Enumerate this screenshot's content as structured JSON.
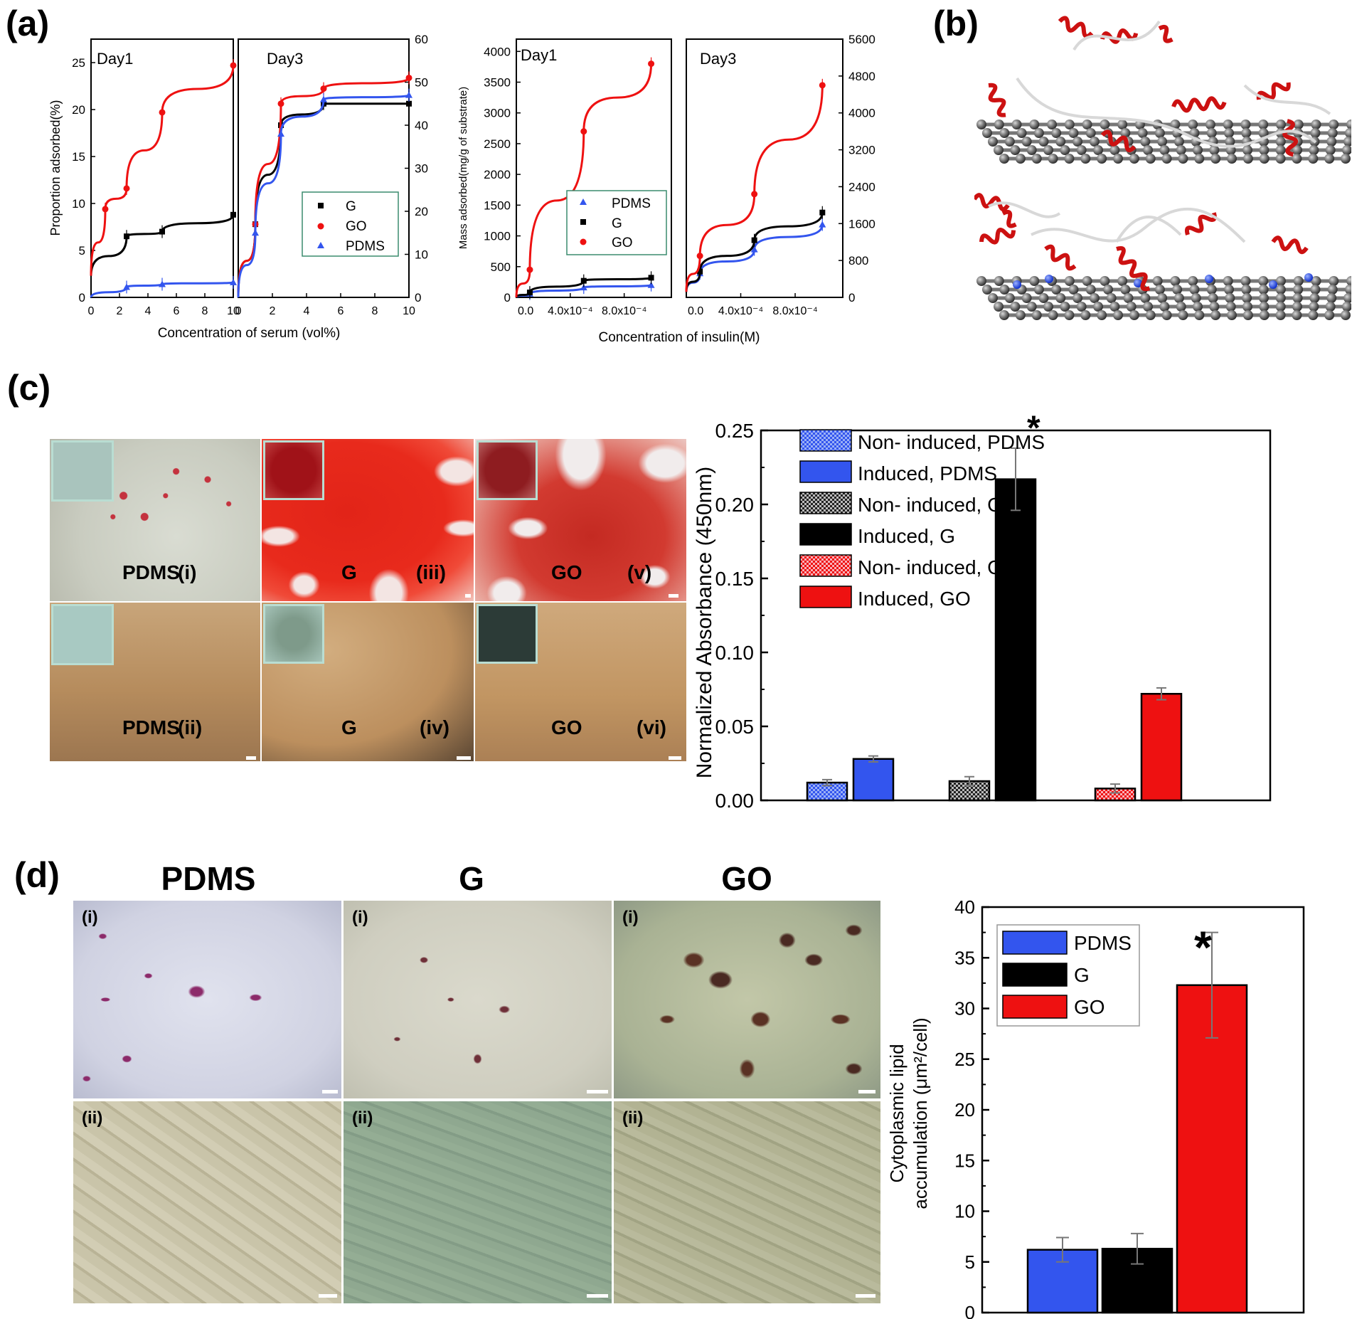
{
  "panels": {
    "a": "(a)",
    "b": "(b)",
    "c": "(c)",
    "d": "(d)"
  },
  "colors": {
    "pdms": "#3355ee",
    "g": "#000000",
    "go": "#ee1111"
  },
  "panel_a": {
    "serum": {
      "xlabel": "Concentration of serum (vol%)",
      "ylabel": "Proportion adsorbed(%)",
      "day1_title": "Day1",
      "day3_title": "Day3",
      "day1_yticks": [
        "0",
        "5",
        "10",
        "15",
        "20",
        "25"
      ],
      "day3_yticks": [
        "0",
        "10",
        "20",
        "30",
        "40",
        "50",
        "60"
      ],
      "xticks": [
        "0",
        "2",
        "4",
        "6",
        "8",
        "10"
      ],
      "legend": [
        "G",
        "GO",
        "PDMS"
      ]
    },
    "insulin": {
      "xlabel": "Concentration of insulin(M)",
      "ylabel": "Mass adsorbed(mg/g of substrate)",
      "day1_title": "Day1",
      "day3_title": "Day3",
      "day1_yticks": [
        "0",
        "500",
        "1000",
        "1500",
        "2000",
        "2500",
        "3000",
        "3500",
        "4000"
      ],
      "day3_yticks": [
        "0",
        "800",
        "1600",
        "2400",
        "3200",
        "4000",
        "4800",
        "5600"
      ],
      "xticks": [
        "0.0",
        "4.0x10⁻⁴",
        "8.0x10⁻⁴"
      ],
      "legend": [
        "PDMS",
        "G",
        "GO"
      ]
    }
  },
  "panel_c": {
    "micro_labels": [
      {
        "name": "PDMS",
        "num": "(i)"
      },
      {
        "name": "G",
        "num": "(iii)"
      },
      {
        "name": "GO",
        "num": "(v)"
      },
      {
        "name": "PDMS",
        "num": "(ii)"
      },
      {
        "name": "G",
        "num": "(iv)"
      },
      {
        "name": "GO",
        "num": "(vi)"
      }
    ]
  },
  "panel_d": {
    "column_titles": [
      "PDMS",
      "G",
      "GO"
    ],
    "row_labels": [
      "(i)",
      "(i)",
      "(i)",
      "(ii)",
      "(ii)",
      "(ii)"
    ]
  },
  "chart_data": [
    {
      "type": "line",
      "subplot": "Day1 serum",
      "title": "Day1",
      "xlabel": "Concentration of serum (vol%)",
      "ylabel": "Proportion adsorbed(%)",
      "xlim": [
        0,
        10
      ],
      "ylim": [
        0,
        27.5
      ],
      "series": [
        {
          "name": "G",
          "x": [
            0,
            2.5,
            5,
            10
          ],
          "y": [
            2.3,
            6.5,
            7.0,
            8.8
          ]
        },
        {
          "name": "GO",
          "x": [
            0,
            1,
            2.5,
            5,
            10
          ],
          "y": [
            2.3,
            9.4,
            11.6,
            19.7,
            24.7
          ]
        },
        {
          "name": "PDMS",
          "x": [
            0,
            2.5,
            5,
            10
          ],
          "y": [
            0,
            1.1,
            1.4,
            1.6
          ]
        }
      ]
    },
    {
      "type": "line",
      "subplot": "Day3 serum",
      "title": "Day3",
      "xlabel": "Concentration of serum (vol%)",
      "ylabel": "Proportion adsorbed(%)",
      "xlim": [
        0,
        10
      ],
      "ylim": [
        0,
        60
      ],
      "series": [
        {
          "name": "G",
          "x": [
            0,
            1,
            2.5,
            5,
            10
          ],
          "y": [
            0,
            17,
            40,
            45,
            45
          ]
        },
        {
          "name": "GO",
          "x": [
            0,
            1,
            2.5,
            5,
            10
          ],
          "y": [
            0,
            17,
            45,
            48.5,
            51
          ]
        },
        {
          "name": "PDMS",
          "x": [
            0,
            1,
            2.5,
            5,
            10
          ],
          "y": [
            0,
            15,
            38,
            46,
            47
          ]
        }
      ]
    },
    {
      "type": "line",
      "subplot": "Day1 insulin",
      "title": "Day1",
      "xlabel": "Concentration of insulin(M)",
      "ylabel": "Mass adsorbed(mg/g of substrate)",
      "xlim": [
        0,
        0.00115
      ],
      "ylim": [
        0,
        4200
      ],
      "series": [
        {
          "name": "PDMS",
          "x": [
            0,
            0.0001,
            0.0005,
            0.001
          ],
          "y": [
            0,
            60,
            160,
            200
          ]
        },
        {
          "name": "G",
          "x": [
            0,
            0.0001,
            0.0005,
            0.001
          ],
          "y": [
            0,
            80,
            270,
            320
          ]
        },
        {
          "name": "GO",
          "x": [
            0,
            0.0001,
            0.0005,
            0.001
          ],
          "y": [
            0,
            450,
            2700,
            3800
          ]
        }
      ]
    },
    {
      "type": "line",
      "subplot": "Day3 insulin",
      "title": "Day3",
      "xlabel": "Concentration of insulin(M)",
      "ylabel": "Mass adsorbed(mg/g of substrate)",
      "xlim": [
        0,
        0.00115
      ],
      "ylim": [
        0,
        5600
      ],
      "series": [
        {
          "name": "PDMS",
          "x": [
            0,
            0.0001,
            0.0005,
            0.001
          ],
          "y": [
            120,
            520,
            1040,
            1580
          ]
        },
        {
          "name": "G",
          "x": [
            0,
            0.0001,
            0.0005,
            0.001
          ],
          "y": [
            120,
            560,
            1240,
            1840
          ]
        },
        {
          "name": "GO",
          "x": [
            0,
            0.0001,
            0.0005,
            0.001
          ],
          "y": [
            120,
            900,
            2240,
            4600
          ]
        }
      ]
    },
    {
      "type": "bar",
      "subplot": "panel c",
      "ylabel": "Normalized Absorbance (450nm)",
      "ylim": [
        0,
        0.25
      ],
      "yticks": [
        "0.00",
        "0.05",
        "0.10",
        "0.15",
        "0.20",
        "0.25"
      ],
      "legend_placement": "top-left",
      "annotation": "*",
      "series": [
        {
          "name": "Non- induced, PDMS",
          "value": 0.012,
          "error": 0.002
        },
        {
          "name": "Induced, PDMS",
          "value": 0.028,
          "error": 0.002
        },
        {
          "name": "Non- induced, G",
          "value": 0.013,
          "error": 0.003
        },
        {
          "name": "Induced, G",
          "value": 0.217,
          "error": 0.021
        },
        {
          "name": "Non- induced, GO",
          "value": 0.008,
          "error": 0.003
        },
        {
          "name": "Induced, GO",
          "value": 0.072,
          "error": 0.004
        }
      ]
    },
    {
      "type": "bar",
      "subplot": "panel d",
      "ylabel": "Cytoplasmic lipid accumulation (μm²/cell)",
      "ylim": [
        0,
        40
      ],
      "yticks": [
        "0",
        "5",
        "10",
        "15",
        "20",
        "25",
        "30",
        "35",
        "40"
      ],
      "legend_placement": "top-left",
      "annotation": "*",
      "categories": [
        "PDMS",
        "G",
        "GO"
      ],
      "values": [
        6.2,
        6.3,
        32.3
      ],
      "errors": [
        1.2,
        1.5,
        5.2
      ]
    }
  ]
}
